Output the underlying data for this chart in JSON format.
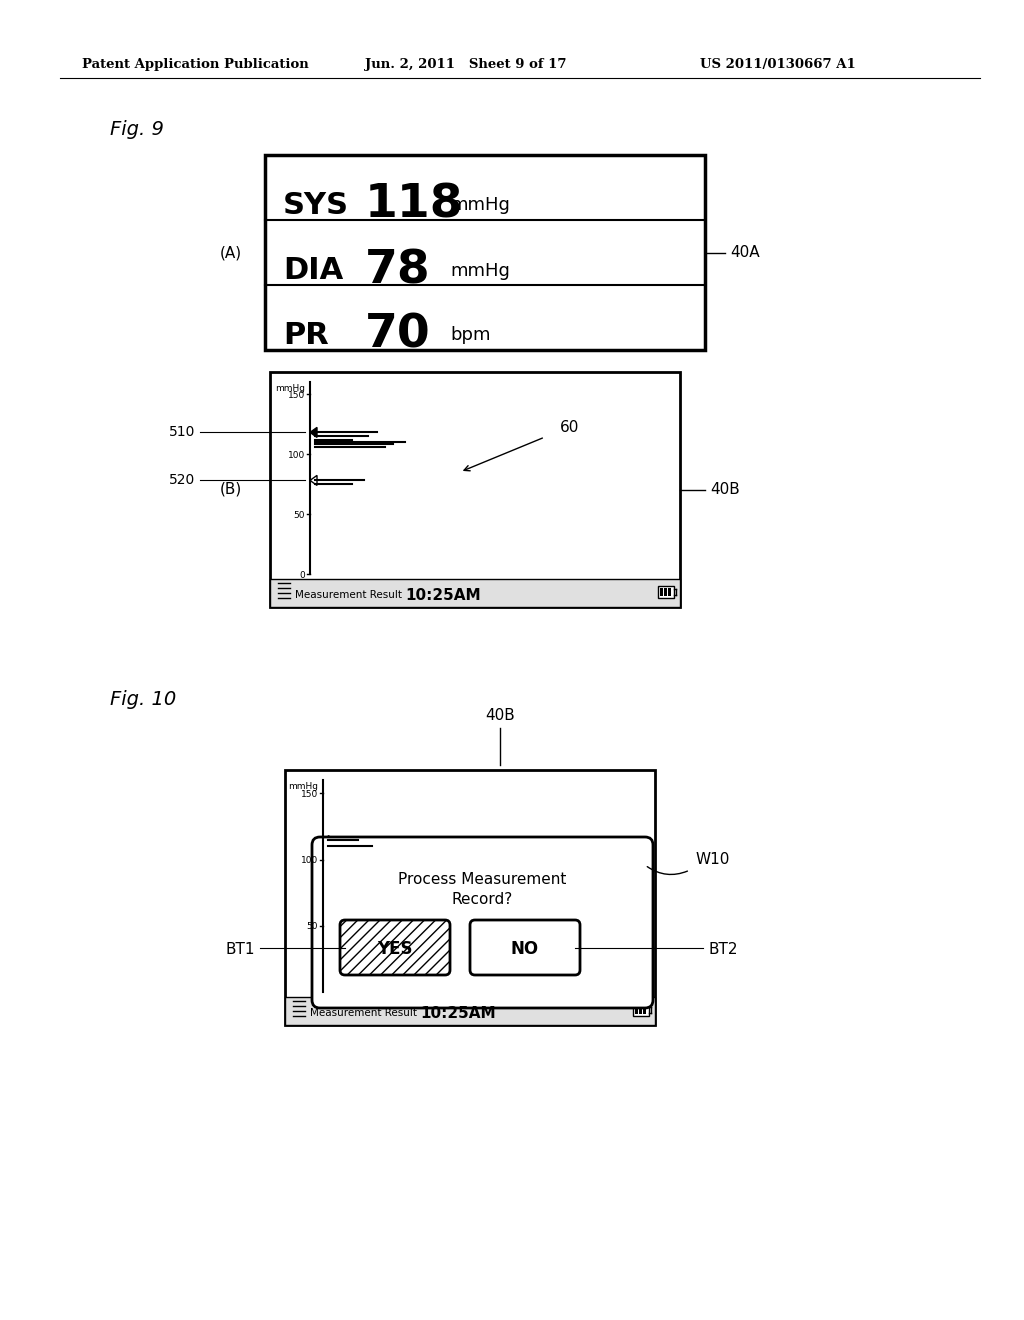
{
  "bg_color": "#ffffff",
  "header_left": "Patent Application Publication",
  "header_mid": "Jun. 2, 2011   Sheet 9 of 17",
  "header_right": "US 2011/0130667 A1",
  "fig9_label": "Fig. 9",
  "fig10_label": "Fig. 10",
  "fig9A_label": "(A)",
  "fig9B_label": "(B)",
  "label_40A": "40A",
  "label_40B_9": "40B",
  "label_40B_10": "40B",
  "label_510": "510",
  "label_520": "520",
  "label_60": "60",
  "label_W10": "W10",
  "label_BT1": "BT1",
  "label_BT2": "BT2",
  "sys_label": "SYS",
  "sys_value": "118",
  "sys_unit": "mmHg",
  "dia_label": "DIA",
  "dia_value": "78",
  "dia_unit": "mmHg",
  "pr_label": "PR",
  "pr_value": "70",
  "pr_unit": "bpm",
  "status_bar_text": "Measurement Result",
  "status_bar_time": "10:25AM",
  "mmhg_label": "mmHg",
  "y_ticks": [
    "150",
    "100",
    "50",
    "0"
  ],
  "bar_lines_9B": [
    [
      0.38,
      0.52,
      0.118
    ],
    [
      0.38,
      0.6,
      0.08
    ],
    [
      0.38,
      0.68,
      0.12
    ],
    [
      0.38,
      0.72,
      0.2
    ],
    [
      0.38,
      0.76,
      0.15
    ],
    [
      0.38,
      0.8,
      0.22
    ],
    [
      0.38,
      0.84,
      0.18
    ],
    [
      0.38,
      0.88,
      0.1
    ]
  ],
  "bar_lines_10": [
    [
      0.38,
      0.52,
      0.08
    ],
    [
      0.38,
      0.56,
      0.12
    ]
  ],
  "yes_button_hatch": "///",
  "process_text_line1": "Process Measurement",
  "process_text_line2": "Record?"
}
